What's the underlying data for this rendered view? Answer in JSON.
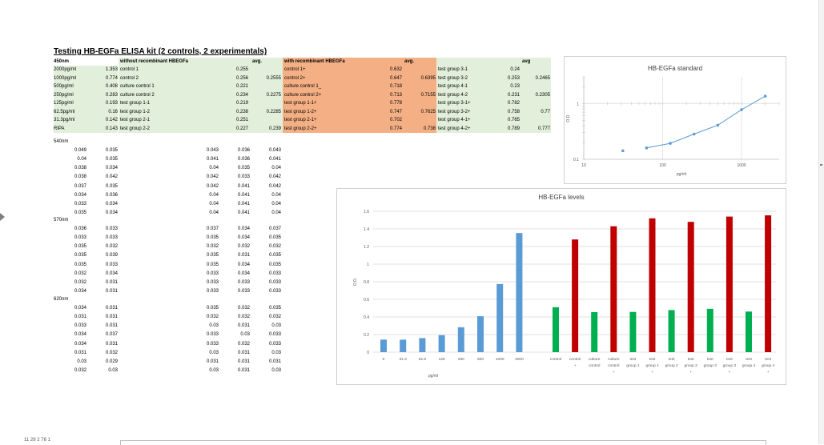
{
  "sheet": {
    "title": "Testing HB-EGFa ELISA kit (2 controls, 2 experimentals)",
    "header_450": "450nm",
    "without_label": "without recombinant HBEGFa",
    "avg1_label": "avg.",
    "with_label": "with recombinant HBEGFa",
    "avg2_label": "avg.",
    "avg3_label": "avg",
    "rows450": [
      {
        "std": "2000pg/ml",
        "v1": "1.353",
        "g1": "control 1",
        "o1": "0.255",
        "a1": "",
        "g2": "control 1+",
        "o2": "0.632",
        "a2": "",
        "g3": "test group 3-1",
        "o3": "0.24",
        "a3": ""
      },
      {
        "std": "1000pg/ml",
        "v1": "0.774",
        "g1": "control 2",
        "o1": "0.256",
        "a1": "0.2555",
        "g2": "control 2+",
        "o2": "0.647",
        "a2": "0.6395",
        "g3": "test group 3-2",
        "o3": "0.253",
        "a3": "0.2465"
      },
      {
        "std": "500pg/ml",
        "v1": "0.408",
        "g1": "culture control 1",
        "o1": "0.221",
        "a1": "",
        "g2": "culture control 1_",
        "o2": "0.718",
        "a2": "",
        "g3": "test group 4-1",
        "o3": "0.23",
        "a3": ""
      },
      {
        "std": "250pg/ml",
        "v1": "0.283",
        "g1": "culture control 2",
        "o1": "0.234",
        "a1": "0.2275",
        "g2": "culture control 2+",
        "o2": "0.713",
        "a2": "0.7155",
        "g3": "test group 4-2",
        "o3": "0.231",
        "a3": "0.2305"
      },
      {
        "std": "125pg/ml",
        "v1": "0.193",
        "g1": "test group 1-1",
        "o1": "0.219",
        "a1": "",
        "g2": "test group 1-1+",
        "o2": "0.778",
        "a2": "",
        "g3": "test group 3-1+",
        "o3": "0.782",
        "a3": ""
      },
      {
        "std": "62.5pg/ml",
        "v1": "0.16",
        "g1": "test group 1-2",
        "o1": "0.238",
        "a1": "0.2285",
        "g2": "test group 1-2+",
        "o2": "0.747",
        "a2": "0.7625",
        "g3": "test group 3-2+",
        "o3": "0.758",
        "a3": "0.77"
      },
      {
        "std": "31.3pg/ml",
        "v1": "0.142",
        "g1": "test group 2-1",
        "o1": "0.251",
        "a1": "",
        "g2": "test group 2-1+",
        "o2": "0.702",
        "a2": "",
        "g3": "test group 4-1+",
        "o3": "0.765",
        "a3": ""
      },
      {
        "std": "RIPA",
        "v1": "0.143",
        "g1": "test group 2-2",
        "o1": "0.227",
        "a1": "0.239",
        "g2": "test group 2-2+",
        "o2": "0.774",
        "a2": "0.738",
        "g3": "test group 4-2+",
        "o3": "0.789",
        "a3": "0.777"
      }
    ],
    "blocks": [
      {
        "label": "540nm",
        "rows": [
          [
            "0.049",
            "0.035",
            "0.043",
            "0.036",
            "0.043"
          ],
          [
            "0.04",
            "0.035",
            "0.041",
            "0.036",
            "0.041"
          ],
          [
            "0.038",
            "0.034",
            "0.04",
            "0.035",
            "0.04"
          ],
          [
            "0.038",
            "0.042",
            "0.042",
            "0.033",
            "0.042"
          ],
          [
            "0.037",
            "0.035",
            "0.042",
            "0.041",
            "0.042"
          ],
          [
            "0.034",
            "0.036",
            "0.04",
            "0.041",
            "0.04"
          ],
          [
            "0.033",
            "0.034",
            "0.04",
            "0.041",
            "0.04"
          ],
          [
            "0.035",
            "0.034",
            "0.04",
            "0.041",
            "0.04"
          ]
        ]
      },
      {
        "label": "570nm",
        "rows": [
          [
            "0.036",
            "0.033",
            "0.037",
            "0.034",
            "0.037"
          ],
          [
            "0.033",
            "0.033",
            "0.035",
            "0.034",
            "0.035"
          ],
          [
            "0.035",
            "0.032",
            "0.032",
            "0.032",
            "0.032"
          ],
          [
            "0.035",
            "0.039",
            "0.035",
            "0.031",
            "0.035"
          ],
          [
            "0.035",
            "0.033",
            "0.035",
            "0.034",
            "0.035"
          ],
          [
            "0.032",
            "0.034",
            "0.033",
            "0.034",
            "0.033"
          ],
          [
            "0.032",
            "0.031",
            "0.033",
            "0.033",
            "0.033"
          ],
          [
            "0.034",
            "0.031",
            "0.033",
            "0.033",
            "0.033"
          ]
        ]
      },
      {
        "label": "620nm",
        "rows": [
          [
            "0.034",
            "0.031",
            "0.035",
            "0.032",
            "0.035"
          ],
          [
            "0.031",
            "0.031",
            "0.032",
            "0.032",
            "0.032"
          ],
          [
            "0.033",
            "0.031",
            "0.03",
            "0.031",
            "0.03"
          ],
          [
            "0.034",
            "0.037",
            "0.033",
            "0.03",
            "0.033"
          ],
          [
            "0.034",
            "0.031",
            "0.033",
            "0.032",
            "0.033"
          ],
          [
            "0.031",
            "0.032",
            "0.03",
            "0.031",
            "0.03"
          ],
          [
            "0.03",
            "0.029",
            "0.031",
            "0.031",
            "0.031"
          ],
          [
            "0.032",
            "0.03",
            "0.03",
            "0.031",
            "0.03"
          ]
        ]
      }
    ]
  },
  "status_text": "11 29 2 76 1",
  "chart_data": [
    {
      "type": "scatter",
      "title": "HB-EGFa standard",
      "xlabel": "pg/ml",
      "ylabel": "O.D.",
      "xscale": "log",
      "yscale": "log",
      "xlim": [
        10,
        3000
      ],
      "ylim": [
        0.1,
        3
      ],
      "x_ticks": [
        "10",
        "100",
        "1000"
      ],
      "y_ticks": [
        "0.1",
        "1"
      ],
      "points": [
        {
          "x": 31.3,
          "y": 0.142
        },
        {
          "x": 62.5,
          "y": 0.16
        },
        {
          "x": 125,
          "y": 0.193
        },
        {
          "x": 250,
          "y": 0.283
        },
        {
          "x": 500,
          "y": 0.408
        },
        {
          "x": 1000,
          "y": 0.774
        },
        {
          "x": 2000,
          "y": 1.353
        }
      ],
      "line_color": "#5b9bd5"
    },
    {
      "type": "bar",
      "title": "HB-EGFa levels",
      "ylabel": "O.D.",
      "xlabel": "pg/ml",
      "ylim": [
        0,
        1.6
      ],
      "y_ticks": [
        "0",
        "0.2",
        "0.4",
        "0.6",
        "0.8",
        "1",
        "1.2",
        "1.4",
        "1.6"
      ],
      "standard": {
        "color": "#5b9bd5",
        "categories": [
          "0",
          "31.3",
          "62.5",
          "125",
          "250",
          "500",
          "1000",
          "2000"
        ],
        "values": [
          0.143,
          0.142,
          0.16,
          0.193,
          0.283,
          0.408,
          0.774,
          1.353
        ]
      },
      "samples": {
        "colors": {
          "minus": "#00b050",
          "plus": "#c00000"
        },
        "categories": [
          {
            "l1": "control",
            "l2": "",
            "v": 0.51,
            "kind": "minus"
          },
          {
            "l1": "control",
            "l2": "+",
            "v": 1.28,
            "kind": "plus"
          },
          {
            "l1": "culture",
            "l2": "control",
            "v": 0.455,
            "kind": "minus"
          },
          {
            "l1": "culture",
            "l2": "control",
            "v": 1.43,
            "kind": "plus"
          },
          {
            "l1": "test",
            "l2": "group 1",
            "v": 0.457,
            "kind": "minus"
          },
          {
            "l1": "test",
            "l2": "group 1",
            "v": 1.52,
            "kind": "plus"
          },
          {
            "l1": "test",
            "l2": "group 2",
            "v": 0.478,
            "kind": "minus"
          },
          {
            "l1": "test",
            "l2": "group 2",
            "v": 1.48,
            "kind": "plus"
          },
          {
            "l1": "test",
            "l2": "group 3",
            "v": 0.492,
            "kind": "minus"
          },
          {
            "l1": "test",
            "l2": "group 3",
            "v": 1.54,
            "kind": "plus"
          },
          {
            "l1": "test",
            "l2": "group 4",
            "v": 0.461,
            "kind": "minus"
          },
          {
            "l1": "test",
            "l2": "group 4",
            "v": 1.554,
            "kind": "plus"
          }
        ],
        "plus_marks": [
          "",
          "",
          "",
          "+",
          "",
          "+",
          "",
          "+",
          "",
          "+",
          "",
          "+"
        ]
      }
    }
  ]
}
